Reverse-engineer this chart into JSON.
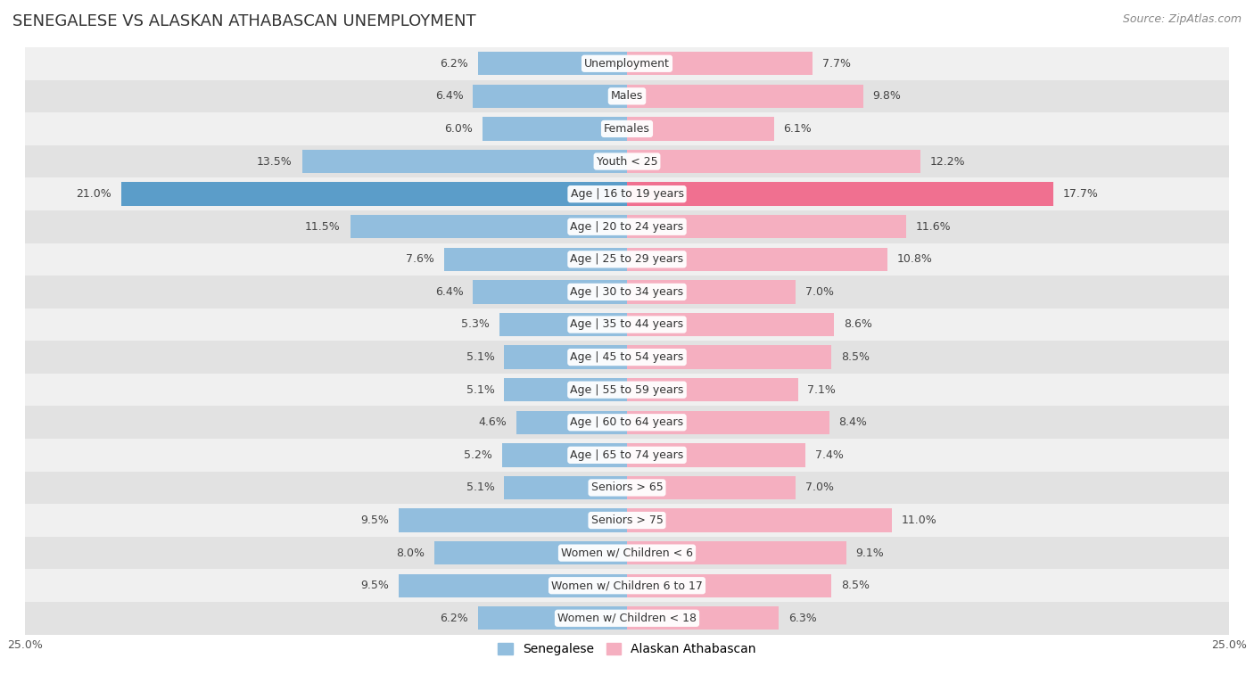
{
  "title": "SENEGALESE VS ALASKAN ATHABASCAN UNEMPLOYMENT",
  "source": "Source: ZipAtlas.com",
  "categories": [
    "Unemployment",
    "Males",
    "Females",
    "Youth < 25",
    "Age | 16 to 19 years",
    "Age | 20 to 24 years",
    "Age | 25 to 29 years",
    "Age | 30 to 34 years",
    "Age | 35 to 44 years",
    "Age | 45 to 54 years",
    "Age | 55 to 59 years",
    "Age | 60 to 64 years",
    "Age | 65 to 74 years",
    "Seniors > 65",
    "Seniors > 75",
    "Women w/ Children < 6",
    "Women w/ Children 6 to 17",
    "Women w/ Children < 18"
  ],
  "senegalese": [
    6.2,
    6.4,
    6.0,
    13.5,
    21.0,
    11.5,
    7.6,
    6.4,
    5.3,
    5.1,
    5.1,
    4.6,
    5.2,
    5.1,
    9.5,
    8.0,
    9.5,
    6.2
  ],
  "alaskan": [
    7.7,
    9.8,
    6.1,
    12.2,
    17.7,
    11.6,
    10.8,
    7.0,
    8.6,
    8.5,
    7.1,
    8.4,
    7.4,
    7.0,
    11.0,
    9.1,
    8.5,
    6.3
  ],
  "senegalese_color": "#92bede",
  "alaskan_color": "#f5afc0",
  "senegalese_highlight_color": "#5b9dc9",
  "alaskan_highlight_color": "#f07090",
  "row_bg_even": "#f0f0f0",
  "row_bg_odd": "#e2e2e2",
  "xlim": 25.0,
  "bar_height": 0.72,
  "title_fontsize": 13,
  "label_fontsize": 9,
  "value_fontsize": 9,
  "tick_fontsize": 9,
  "legend_fontsize": 10,
  "source_fontsize": 9
}
